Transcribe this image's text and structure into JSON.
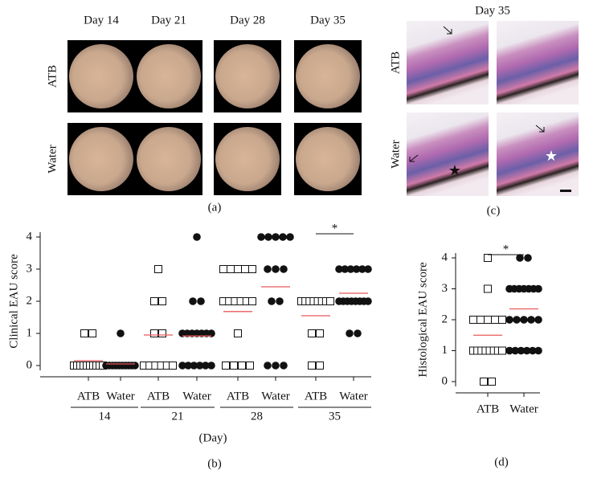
{
  "panel_a": {
    "label": "(a)",
    "columns": [
      "Day 14",
      "Day 21",
      "Day 28",
      "Day 35"
    ],
    "rows": [
      "ATB",
      "Water"
    ]
  },
  "panel_c": {
    "label": "(c)",
    "title": "Day 35",
    "rows": [
      "ATB",
      "Water"
    ]
  },
  "chart_data": [
    {
      "type": "dot",
      "panel_label": "(b)",
      "ylabel": "Clinical EAU score",
      "xlabel": "(Day)",
      "categories": [
        "ATB",
        "Water",
        "ATB",
        "Water",
        "ATB",
        "Water",
        "ATB",
        "Water"
      ],
      "groups": [
        "14",
        "21",
        "28",
        "35"
      ],
      "markers": [
        "open-square",
        "filled-circle"
      ],
      "points": [
        [
          1,
          1,
          0,
          0,
          0,
          0,
          0,
          0,
          0,
          0,
          0,
          0
        ],
        [
          1,
          0,
          0,
          0,
          0,
          0,
          0,
          0,
          0,
          0,
          0
        ],
        [
          3,
          2,
          2,
          1,
          1,
          0,
          0,
          0,
          0,
          0,
          0
        ],
        [
          4,
          2,
          2,
          1,
          1,
          1,
          1,
          1,
          1,
          1,
          0,
          0,
          0,
          0,
          0,
          0
        ],
        [
          3,
          3,
          3,
          3,
          3,
          2,
          2,
          2,
          2,
          2,
          2,
          1,
          0,
          0,
          0,
          0
        ],
        [
          4,
          4,
          4,
          4,
          4,
          3,
          3,
          3,
          2,
          2,
          0,
          0,
          0
        ],
        [
          2,
          2,
          2,
          2,
          2,
          2,
          2,
          2,
          1,
          1,
          0,
          0
        ],
        [
          3,
          3,
          3,
          3,
          3,
          3,
          2,
          2,
          2,
          2,
          2,
          2,
          2,
          2,
          1,
          1
        ]
      ],
      "means": [
        0.15,
        0.05,
        0.95,
        0.92,
        1.68,
        2.45,
        1.55,
        2.25
      ],
      "mean_color": "#e8595a",
      "ylim": [
        0,
        4
      ],
      "yticks": [
        0,
        1,
        2,
        3,
        4
      ],
      "significance": [
        {
          "label": "*",
          "between": [
            6,
            7
          ]
        }
      ]
    },
    {
      "type": "dot",
      "panel_label": "(d)",
      "ylabel": "Histological EAU score",
      "categories": [
        "ATB",
        "Water"
      ],
      "markers": [
        "open-square",
        "filled-circle"
      ],
      "points": [
        [
          4,
          3,
          2,
          2,
          2,
          2,
          2,
          1,
          1,
          1,
          1,
          1,
          1,
          1,
          1,
          0,
          0
        ],
        [
          4,
          4,
          3,
          3,
          3,
          3,
          3,
          3,
          3,
          2,
          2,
          2,
          2,
          2,
          1,
          1,
          1,
          1,
          1,
          1
        ]
      ],
      "means": [
        1.5,
        2.35
      ],
      "mean_color": "#e8595a",
      "ylim": [
        0,
        4
      ],
      "yticks": [
        0,
        1,
        2,
        3,
        4
      ],
      "significance": [
        {
          "label": "*",
          "between": [
            0,
            1
          ]
        }
      ]
    }
  ]
}
